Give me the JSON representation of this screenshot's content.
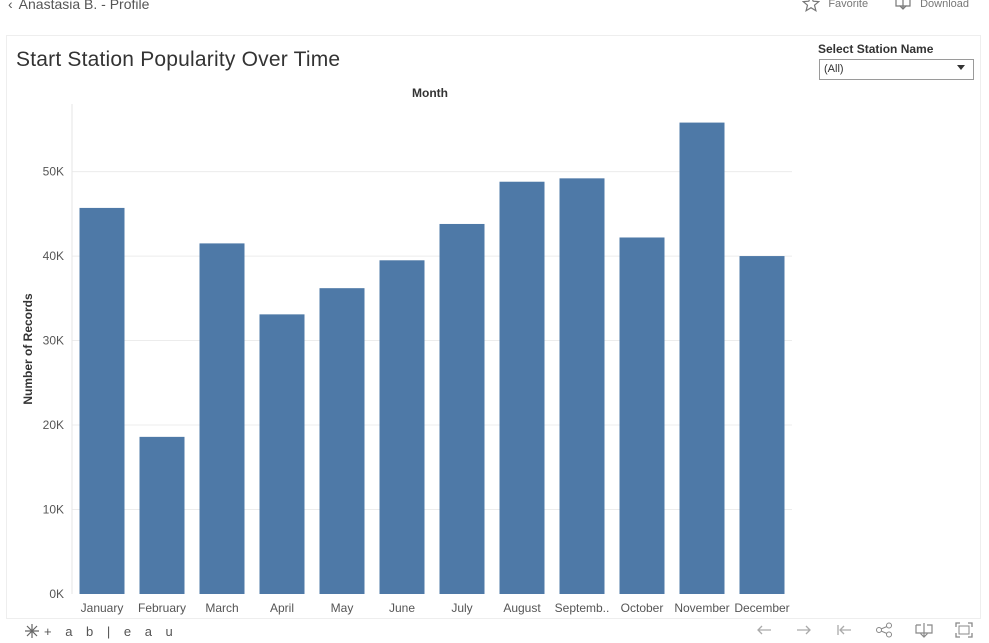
{
  "header": {
    "back_label": "Anastasia B. - Profile",
    "favorite_label": "Favorite",
    "download_label": "Download"
  },
  "dashboard": {
    "title": "Start Station Popularity Over Time",
    "filter": {
      "label": "Select Station Name",
      "selected": "(All)"
    }
  },
  "footer": {
    "logo_text": "+ a b | e a u",
    "icons": [
      "undo-icon",
      "redo-icon",
      "revert-icon",
      "share-icon",
      "download-icon",
      "fullscreen-icon"
    ]
  },
  "chart_data": {
    "type": "bar",
    "title": "Start Station Popularity Over Time",
    "column_header": "Month",
    "ylabel": "Number of Records",
    "categories": [
      "January",
      "February",
      "March",
      "April",
      "May",
      "June",
      "July",
      "August",
      "Septemb..",
      "October",
      "November",
      "December"
    ],
    "values": [
      45700,
      18600,
      41500,
      33100,
      36200,
      39500,
      43800,
      48800,
      49200,
      42200,
      55800,
      40000
    ],
    "ylim": [
      0,
      58000
    ],
    "yticks": [
      0,
      10000,
      20000,
      30000,
      40000,
      50000
    ],
    "ytick_labels": [
      "0K",
      "10K",
      "20K",
      "30K",
      "40K",
      "50K"
    ],
    "grid": true,
    "bar_color": "#4e79a7"
  }
}
